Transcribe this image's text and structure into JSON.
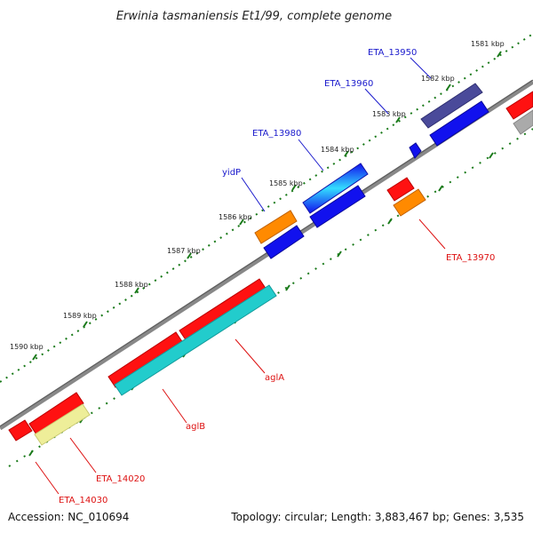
{
  "title": "Erwinia tasmaniensis Et1/99, complete genome",
  "footer": {
    "accession": "Accession: NC_010694",
    "summary": "Topology: circular; Length: 3,883,467 bp; Genes: 3,535"
  },
  "ticks": [
    "1581 kbp",
    "1582 kbp",
    "1583 kbp",
    "1584 kbp",
    "1585 kbp",
    "1586 kbp",
    "1587 kbp",
    "1588 kbp",
    "1589 kbp",
    "1590 kbp"
  ],
  "genes": {
    "ETA_13950": "ETA_13950",
    "ETA_13960": "ETA_13960",
    "ETA_13980": "ETA_13980",
    "yidP": "yidP",
    "ETA_13970": "ETA_13970",
    "aglA": "aglA",
    "aglB": "aglB",
    "ETA_14020": "ETA_14020",
    "ETA_14030": "ETA_14030"
  },
  "colors": {
    "backbone": "#777777",
    "tick_green": "#1a7a1a",
    "red": "#ff1111",
    "blue": "#1111ee",
    "navy": "#4a4a9a",
    "orange": "#ff8a00",
    "cyan": "#22cccc",
    "yellow": "#eeee99",
    "gray": "#aaaaaa"
  }
}
